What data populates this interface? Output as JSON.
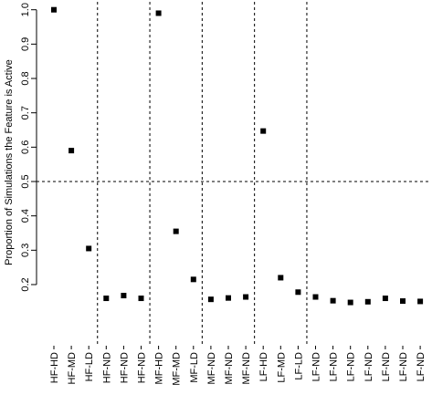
{
  "chart_data": {
    "type": "scatter",
    "title": "",
    "xlabel": "",
    "ylabel": "Proportion of Simulations the Feature is Active",
    "ylim": [
      0.0,
      1.0
    ],
    "yticks": [
      0.2,
      0.3,
      0.4,
      0.5,
      0.6,
      0.7,
      0.8,
      0.9,
      1.0
    ],
    "ytick_labels": [
      "0.2",
      "0.3",
      "0.4",
      "0.5",
      "0.6",
      "0.7",
      "0.8",
      "0.9",
      "1.0"
    ],
    "categories": [
      "HF-HD",
      "HF-MD",
      "HF-LD",
      "HF-ND",
      "HF-ND",
      "HF-ND",
      "MF-HD",
      "MF-MD",
      "MF-LD",
      "MF-ND",
      "MF-ND",
      "MF-ND",
      "LF-HD",
      "LF-MD",
      "LF-LD",
      "LF-ND",
      "LF-ND",
      "LF-ND",
      "LF-ND",
      "LF-ND",
      "LF-ND",
      "LF-ND"
    ],
    "values": [
      1.0,
      0.59,
      0.305,
      0.16,
      0.168,
      0.16,
      0.99,
      0.355,
      0.215,
      0.157,
      0.161,
      0.164,
      0.647,
      0.22,
      0.178,
      0.164,
      0.153,
      0.148,
      0.15,
      0.16,
      0.152,
      0.151
    ],
    "hline": 0.5,
    "group_separators_after_index": [
      2,
      5,
      8,
      11,
      14
    ],
    "marker": "square",
    "marker_color": "#000000",
    "grid": false,
    "legend": "none"
  }
}
